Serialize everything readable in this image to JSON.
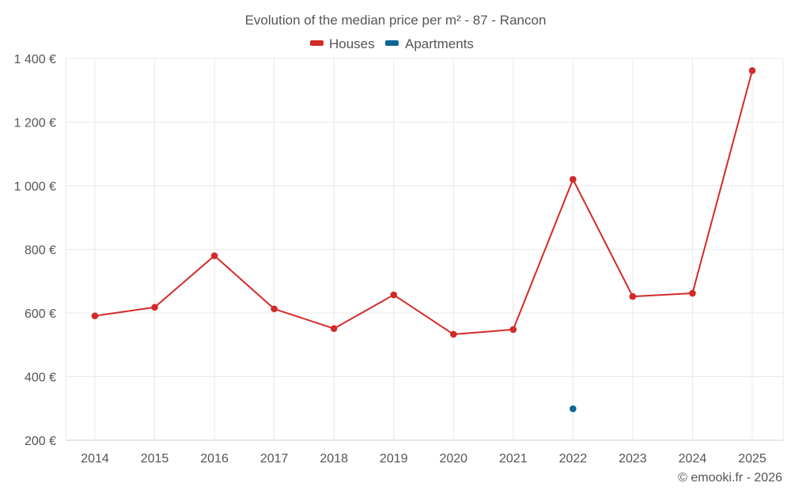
{
  "colors": {
    "houses": "#d32a2a",
    "apartments": "#0e6697"
  },
  "chart_data": {
    "type": "line",
    "title": "Evolution of the median price per m² - 87 - Rancon",
    "categories": [
      "2014",
      "2015",
      "2016",
      "2017",
      "2018",
      "2019",
      "2020",
      "2021",
      "2022",
      "2023",
      "2024",
      "2025"
    ],
    "series": [
      {
        "name": "Houses",
        "color": "#d32a2a",
        "values": [
          591,
          618,
          780,
          613,
          551,
          657,
          533,
          548,
          1020,
          652,
          662,
          1362
        ]
      },
      {
        "name": "Apartments",
        "color": "#0e6697",
        "values": [
          null,
          null,
          null,
          null,
          null,
          null,
          null,
          null,
          299,
          null,
          null,
          null
        ]
      }
    ],
    "y_ticks": [
      200,
      400,
      600,
      800,
      1000,
      1200,
      1400
    ],
    "y_tick_labels": [
      "200 €",
      "400 €",
      "600 €",
      "800 €",
      "1 000 €",
      "1 200 €",
      "1 400 €"
    ],
    "ylim": [
      200,
      1400
    ],
    "grid": true,
    "legend_position": "top-center"
  },
  "credit": "© emooki.fr - 2026"
}
